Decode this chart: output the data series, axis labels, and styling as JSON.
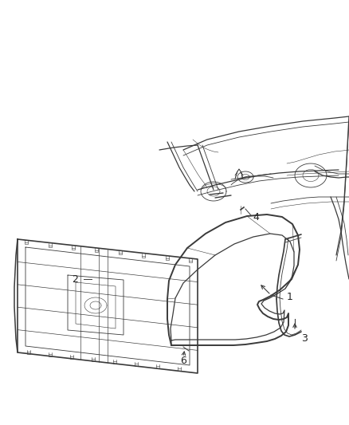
{
  "background_color": "#ffffff",
  "line_color": "#3a3a3a",
  "label_color": "#222222",
  "fig_width": 4.38,
  "fig_height": 5.33,
  "dpi": 100
}
